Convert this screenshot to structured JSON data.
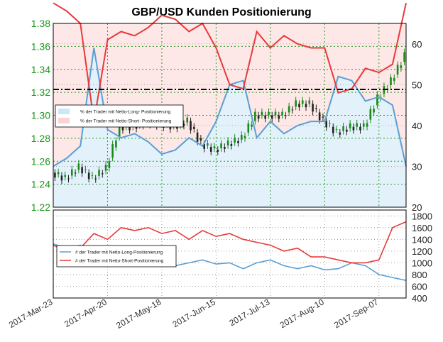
{
  "chart_data": [
    {
      "type": "line",
      "title": "GBP/USD Kunden Positionierung",
      "x": [
        "2017-Mar-23",
        "2017-Mar-30",
        "2017-Apr-06",
        "2017-Apr-13",
        "2017-Apr-20",
        "2017-Apr-27",
        "2017-May-04",
        "2017-May-11",
        "2017-May-18",
        "2017-May-25",
        "2017-Jun-01",
        "2017-Jun-08",
        "2017-Jun-15",
        "2017-Jun-22",
        "2017-Jun-29",
        "2017-Jul-06",
        "2017-Jul-13",
        "2017-Jul-20",
        "2017-Jul-27",
        "2017-Aug-03",
        "2017-Aug-10",
        "2017-Aug-17",
        "2017-Aug-24",
        "2017-Aug-31",
        "2017-Sep-07",
        "2017-Sep-14",
        "2017-Sep-18"
      ],
      "xticks": [
        "2017-Mar-23",
        "2017-Apr-20",
        "2017-May-18",
        "2017-Jun-15",
        "2017-Jul-13",
        "2017-Aug-10",
        "2017-Sep-07"
      ],
      "price_axis": {
        "ticks": [
          "1.38",
          "1.36",
          "1.34",
          "1.32",
          "1.30",
          "1.28",
          "1.26",
          "1.24",
          "1.22"
        ],
        "ylim": [
          1.22,
          1.38
        ],
        "color": "#1a9a1a"
      },
      "pct_axis": {
        "ticks": [
          "60",
          "50",
          "40",
          "30",
          "20"
        ],
        "ylim": [
          20,
          65
        ]
      },
      "reference_line": 1.3225,
      "price": [
        1.25,
        1.245,
        1.255,
        1.245,
        1.254,
        1.29,
        1.29,
        1.295,
        1.293,
        1.29,
        1.295,
        1.275,
        1.27,
        1.275,
        1.28,
        1.3,
        1.3,
        1.3,
        1.31,
        1.31,
        1.295,
        1.285,
        1.29,
        1.29,
        1.315,
        1.33,
        1.352
      ],
      "series": [
        {
          "name": "% der Trader mit Netto-Long- Positionierung",
          "color": "#5a9fd4",
          "values": [
            30,
            32,
            35,
            59,
            39,
            37,
            38,
            36,
            33,
            34,
            37,
            35,
            41,
            50,
            51,
            37,
            41,
            38,
            40,
            41,
            41,
            52,
            51,
            46,
            47,
            45,
            30
          ]
        },
        {
          "name": "% der Trader mit Netto-Short- Positionierung",
          "color": "#e8393a",
          "values": [
            70,
            68,
            65,
            41,
            61,
            63,
            62,
            64,
            67,
            66,
            63,
            65,
            59,
            50,
            49,
            63,
            59,
            62,
            60,
            59,
            59,
            48,
            49,
            54,
            53,
            55,
            70
          ]
        }
      ],
      "legend": "left",
      "grid": true
    },
    {
      "type": "line",
      "yticks": [
        "1800",
        "1600",
        "1400",
        "1200",
        "1000",
        "800",
        "600",
        "400"
      ],
      "ylim": [
        400,
        1900
      ],
      "series": [
        {
          "name": "# der Trader mit Netto-Long-Positionierung",
          "color": "#5a9fd4",
          "values": [
            1320,
            1250,
            1300,
            1150,
            1200,
            1050,
            1000,
            980,
            1020,
            950,
            1000,
            1050,
            980,
            1000,
            900,
            1000,
            1050,
            950,
            900,
            950,
            880,
            900,
            1000,
            950,
            800,
            750,
            700
          ]
        },
        {
          "name": "# der Trader mit Netto-Short-Positionierung",
          "color": "#e8393a",
          "values": [
            1300,
            1200,
            1250,
            1500,
            1400,
            1600,
            1550,
            1600,
            1500,
            1550,
            1400,
            1550,
            1450,
            1500,
            1400,
            1350,
            1300,
            1200,
            1250,
            1100,
            1100,
            1050,
            1000,
            1000,
            1050,
            1600,
            1700
          ]
        }
      ],
      "legend": "left",
      "grid": true
    }
  ]
}
